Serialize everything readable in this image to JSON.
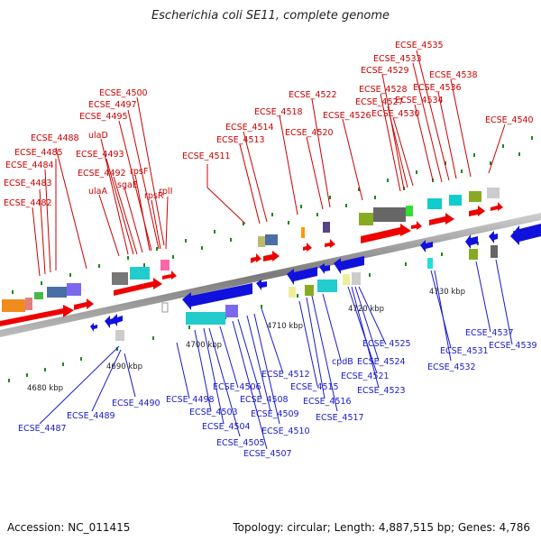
{
  "title": "Escherichia coli SE11, complete genome",
  "accession": "Accession: NC_011415",
  "topology": "Topology: circular; Length: 4,887,515 bp; Genes: 4,786",
  "colors": {
    "forward_label": "#cc0000",
    "reverse_label": "#1a1acc",
    "forward_arrow": "#ee0000",
    "reverse_arrow": "#1111dd",
    "backbone": "#888888",
    "tick": "#1a8a1a"
  },
  "kbp_labels": [
    "4680 kbp",
    "4690 kbp",
    "4700 kbp",
    "4710 kbp",
    "4720 kbp",
    "4730 kbp"
  ],
  "forward_labels": [
    "ECSE_4488",
    "ECSE_4485",
    "ECSE_4484",
    "ECSE_4483",
    "ECSE_4482",
    "ECSE_4500",
    "ECSE_4497",
    "ECSE_4495",
    "ulaD",
    "ECSE_4493",
    "ECSE_4492",
    "ulaA",
    "sgaE",
    "rpsF",
    "rpsR",
    "rplI",
    "ECSE_4511",
    "ECSE_4514",
    "ECSE_4513",
    "ECSE_4518",
    "ECSE_4522",
    "ECSE_4520",
    "ECSE_4526",
    "ECSE_4535",
    "ECSE_4533",
    "ECSE_4529",
    "ECSE_4528",
    "ECSE_4527",
    "ECSE_4530",
    "ECSE_4534",
    "ECSE_4536",
    "ECSE_4538",
    "ECSE_4540"
  ],
  "reverse_labels": [
    "ECSE_4487",
    "ECSE_4489",
    "ECSE_4490",
    "ECSE_4498",
    "ECSE_4503",
    "ECSE_4504",
    "ECSE_4505",
    "ECSE_4506",
    "ECSE_4507",
    "ECSE_4508",
    "ECSE_4509",
    "ECSE_4510",
    "ECSE_4512",
    "ECSE_4515",
    "ECSE_4516",
    "ECSE_4517",
    "cpdB",
    "ECSE_4521",
    "ECSE_4523",
    "ECSE_4524",
    "ECSE_4525",
    "ECSE_4531",
    "ECSE_4532",
    "ECSE_4537",
    "ECSE_4539"
  ]
}
